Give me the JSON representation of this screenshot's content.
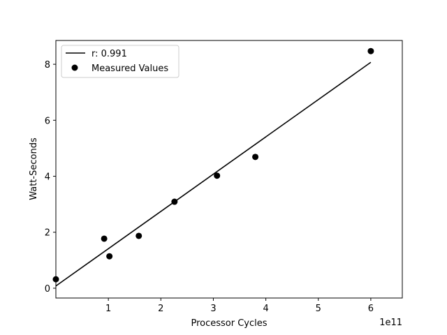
{
  "chart_data": {
    "type": "scatter",
    "title": "",
    "xlabel": "Processor Cycles",
    "ylabel": "Watt-Seconds",
    "x_offset_label": "1e11",
    "x_scale": 100000000000.0,
    "xlim": [
      0,
      6.6
    ],
    "ylim": [
      -0.35,
      8.85
    ],
    "x_ticks": [
      {
        "value": 1,
        "label": "1"
      },
      {
        "value": 2,
        "label": "2"
      },
      {
        "value": 3,
        "label": "3"
      },
      {
        "value": 4,
        "label": "4"
      },
      {
        "value": 5,
        "label": "5"
      },
      {
        "value": 6,
        "label": "6"
      }
    ],
    "y_ticks": [
      {
        "value": 0,
        "label": "0"
      },
      {
        "value": 2,
        "label": "2"
      },
      {
        "value": 4,
        "label": "4"
      },
      {
        "value": 6,
        "label": "6"
      },
      {
        "value": 8,
        "label": "8"
      }
    ],
    "grid": false,
    "legend_position": "top-left",
    "series": [
      {
        "name": "r: 0.991",
        "kind": "line",
        "color": "#000000",
        "x": [
          0,
          6.0
        ],
        "y": [
          0.08,
          8.07
        ]
      },
      {
        "name": "Measured Values",
        "kind": "scatter",
        "color": "#000000",
        "x": [
          0.0,
          0.92,
          1.02,
          1.58,
          2.26,
          3.07,
          3.8,
          6.0
        ],
        "y": [
          0.32,
          1.77,
          1.14,
          1.87,
          3.09,
          4.02,
          4.69,
          8.47
        ]
      }
    ]
  }
}
